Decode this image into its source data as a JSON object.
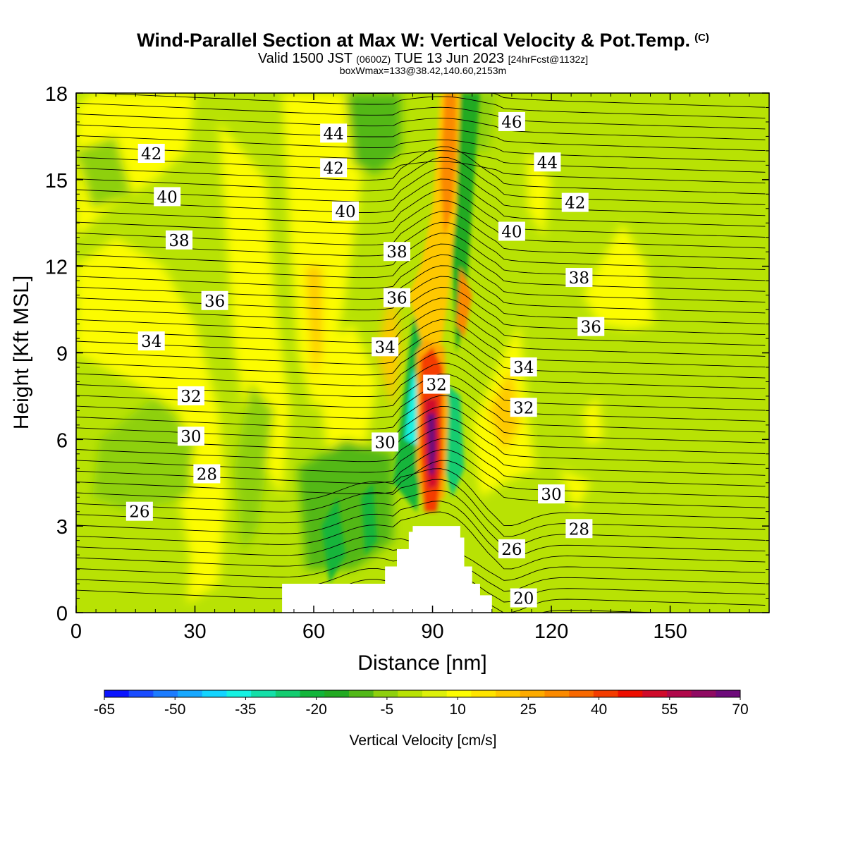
{
  "title": "Wind-Parallel Section at Max W: Vertical Velocity & Pot.Temp.",
  "title_mark": "(C)",
  "subtitle": {
    "valid": "Valid 1500 JST",
    "utc": "(0600Z)",
    "date": "TUE 13 Jun 2023",
    "forecast": "[24hrFcst@1132z]"
  },
  "info_line": "boxWmax=133@38.42,140.60,2153m",
  "chart_data": {
    "type": "heatmap",
    "xlabel": "Distance [nm]",
    "ylabel": "Height [Kft MSL]",
    "xlim": [
      0,
      175
    ],
    "ylim": [
      0,
      18
    ],
    "x_ticks": [
      0,
      30,
      60,
      90,
      120,
      150
    ],
    "y_ticks": [
      0,
      3,
      6,
      9,
      12,
      15,
      18
    ],
    "grid": false,
    "background_value_range_cm_s": [
      -5,
      5
    ],
    "max_updraft": {
      "x_nm": 90,
      "y_kft_range": [
        4.5,
        8.5
      ],
      "value_cm_s": 70
    },
    "colorbar": {
      "label": "Vertical Velocity [cm/s]",
      "placement": "bottom",
      "tick_labels": [
        "-65",
        "-50",
        "-35",
        "-20",
        "-5",
        "10",
        "25",
        "40",
        "55",
        "70"
      ],
      "colors": [
        "#0a14ff",
        "#1a4cff",
        "#1c7cff",
        "#17a8ff",
        "#13d4ff",
        "#16f2e2",
        "#14dfa8",
        "#13cc70",
        "#12b53a",
        "#22aa22",
        "#52b818",
        "#8ed00e",
        "#b8e204",
        "#ddf00a",
        "#fcfc02",
        "#ffe400",
        "#fec800",
        "#fdab00",
        "#fb8a00",
        "#f86800",
        "#f43c00",
        "#ee0e00",
        "#d00a2a",
        "#b0084a",
        "#8f0a62",
        "#6d0a7a"
      ]
    },
    "terrain": {
      "x_nm": [
        0,
        52,
        52,
        78,
        78,
        81,
        81,
        84,
        84,
        85,
        85,
        97,
        97,
        98,
        98,
        100,
        100,
        102,
        102,
        105,
        105,
        175
      ],
      "height_kft": [
        0,
        0,
        1,
        1,
        1.6,
        1.6,
        2.2,
        2.2,
        2.8,
        2.8,
        3,
        3,
        2.6,
        2.6,
        1.6,
        1.6,
        1,
        1,
        0.6,
        0.6,
        0,
        0
      ]
    },
    "theta_contours": [
      {
        "label": "20",
        "x": 113,
        "y": 0.5
      },
      {
        "label": "26",
        "x": 16,
        "y": 3.5
      },
      {
        "label": "26",
        "x": 110,
        "y": 2.2
      },
      {
        "label": "28",
        "x": 33,
        "y": 4.8
      },
      {
        "label": "28",
        "x": 127,
        "y": 2.9
      },
      {
        "label": "30",
        "x": 29,
        "y": 6.1
      },
      {
        "label": "30",
        "x": 78,
        "y": 5.9
      },
      {
        "label": "30",
        "x": 120,
        "y": 4.1
      },
      {
        "label": "32",
        "x": 29,
        "y": 7.5
      },
      {
        "label": "32",
        "x": 91,
        "y": 7.9
      },
      {
        "label": "32",
        "x": 113,
        "y": 7.1
      },
      {
        "label": "34",
        "x": 19,
        "y": 9.4
      },
      {
        "label": "34",
        "x": 78,
        "y": 9.2
      },
      {
        "label": "34",
        "x": 113,
        "y": 8.5
      },
      {
        "label": "36",
        "x": 35,
        "y": 10.8
      },
      {
        "label": "36",
        "x": 81,
        "y": 10.9
      },
      {
        "label": "36",
        "x": 130,
        "y": 9.9
      },
      {
        "label": "38",
        "x": 26,
        "y": 12.9
      },
      {
        "label": "38",
        "x": 81,
        "y": 12.5
      },
      {
        "label": "38",
        "x": 127,
        "y": 11.6
      },
      {
        "label": "40",
        "x": 23,
        "y": 14.4
      },
      {
        "label": "40",
        "x": 68,
        "y": 13.9
      },
      {
        "label": "40",
        "x": 110,
        "y": 13.2
      },
      {
        "label": "42",
        "x": 19,
        "y": 15.9
      },
      {
        "label": "42",
        "x": 65,
        "y": 15.4
      },
      {
        "label": "42",
        "x": 126,
        "y": 14.2
      },
      {
        "label": "44",
        "x": 65,
        "y": 16.6
      },
      {
        "label": "44",
        "x": 119,
        "y": 15.6
      },
      {
        "label": "46",
        "x": 110,
        "y": 17.0
      }
    ]
  }
}
